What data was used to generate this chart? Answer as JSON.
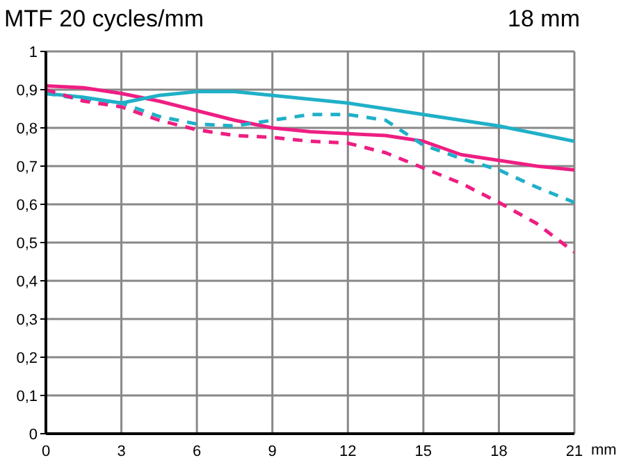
{
  "chart_data": {
    "type": "line",
    "title": "MTF 20 cycles/mm",
    "subtitle": "18 mm",
    "xlabel": "mm",
    "x": [
      0,
      1.5,
      3,
      4.5,
      6,
      7.5,
      9,
      10.5,
      12,
      13.5,
      15,
      16.5,
      18,
      19.5,
      21
    ],
    "series": [
      {
        "color": "#ee1e82",
        "line_style": "solid",
        "values": [
          0.91,
          0.905,
          0.89,
          0.87,
          0.845,
          0.82,
          0.8,
          0.79,
          0.785,
          0.78,
          0.765,
          0.73,
          0.715,
          0.7,
          0.69
        ]
      },
      {
        "color": "#1fb0c8",
        "line_style": "solid",
        "values": [
          0.89,
          0.88,
          0.865,
          0.885,
          0.895,
          0.895,
          0.885,
          0.875,
          0.865,
          0.85,
          0.835,
          0.82,
          0.805,
          0.785,
          0.765
        ]
      },
      {
        "color": "#1fb0c8",
        "line_style": "dashed",
        "values": [
          0.89,
          0.875,
          0.865,
          0.83,
          0.81,
          0.805,
          0.82,
          0.835,
          0.835,
          0.82,
          0.755,
          0.72,
          0.69,
          0.645,
          0.605
        ]
      },
      {
        "color": "#ee1e82",
        "line_style": "dashed",
        "values": [
          0.9,
          0.87,
          0.855,
          0.82,
          0.795,
          0.78,
          0.775,
          0.765,
          0.76,
          0.735,
          0.695,
          0.655,
          0.605,
          0.55,
          0.475
        ]
      }
    ],
    "xlim": [
      0,
      21
    ],
    "xticks": [
      0,
      3,
      6,
      9,
      12,
      15,
      18,
      21
    ],
    "ylim": [
      0,
      1
    ],
    "yticks": [
      0,
      {
        "value": 0.1,
        "label": "0,1"
      },
      {
        "value": 0.2,
        "label": "0,2"
      },
      {
        "value": 0.3,
        "label": "0,3"
      },
      {
        "value": 0.4,
        "label": "0,4"
      },
      {
        "value": 0.5,
        "label": "0,5"
      },
      {
        "value": 0.6,
        "label": "0,6"
      },
      {
        "value": 0.7,
        "label": "0,7"
      },
      {
        "value": 0.8,
        "label": "0,8"
      },
      {
        "value": 0.9,
        "label": "0,9"
      },
      1
    ],
    "grid": true,
    "marker": "none"
  }
}
